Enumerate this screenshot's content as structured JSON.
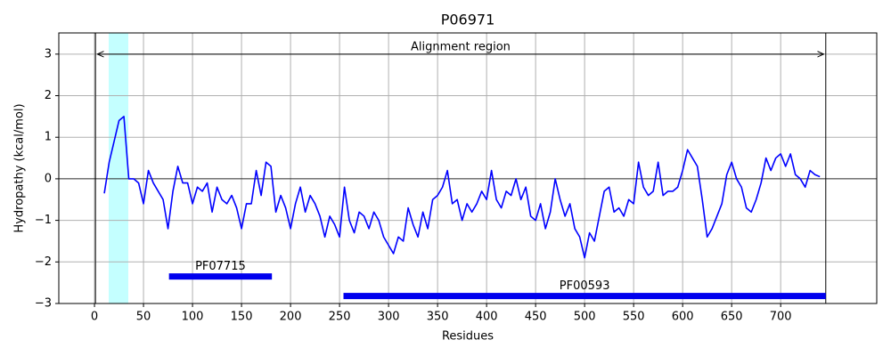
{
  "chart_data": {
    "type": "line",
    "title": "P06971",
    "x_label": "Residues",
    "y_label": "Hydropathy (kcal/mol)",
    "xlim": [
      -36.4,
      798
    ],
    "ylim": [
      -3,
      3.51
    ],
    "xticks": [
      0,
      50,
      100,
      150,
      200,
      250,
      300,
      350,
      400,
      450,
      500,
      550,
      600,
      650,
      700
    ],
    "yticks": [
      {
        "value": -3,
        "label": "−3"
      },
      {
        "value": -2,
        "label": "−2"
      },
      {
        "value": -1,
        "label": "−1"
      },
      0,
      1,
      2,
      3
    ],
    "grid": true,
    "hline": 0,
    "vlines": [
      1,
      746
    ],
    "highlight": {
      "start": 14.5,
      "end": 34.5,
      "color": "#c4ffff"
    },
    "alignment": {
      "label": "Alignment region",
      "start": 3,
      "end": 744,
      "y": 3
    },
    "domains": [
      {
        "name": "PF07715",
        "start": 76,
        "end": 181,
        "y": -2.35
      },
      {
        "name": "PF00593",
        "start": 254,
        "end": 746,
        "y": -2.82
      }
    ],
    "domain_color": "#0000ee",
    "series": [
      {
        "color": "#0000ff",
        "x": [
          10,
          15,
          20,
          25,
          30,
          35,
          40,
          45,
          50,
          55,
          60,
          65,
          70,
          75,
          80,
          85,
          90,
          95,
          100,
          105,
          110,
          115,
          120,
          125,
          130,
          135,
          140,
          145,
          150,
          155,
          160,
          165,
          170,
          175,
          180,
          185,
          190,
          195,
          200,
          205,
          210,
          215,
          220,
          225,
          230,
          235,
          240,
          245,
          250,
          255,
          260,
          265,
          270,
          275,
          280,
          285,
          290,
          295,
          300,
          305,
          310,
          315,
          320,
          325,
          330,
          335,
          340,
          345,
          350,
          355,
          360,
          365,
          370,
          375,
          380,
          385,
          390,
          395,
          400,
          405,
          410,
          415,
          420,
          425,
          430,
          435,
          440,
          445,
          450,
          455,
          460,
          465,
          470,
          475,
          480,
          485,
          490,
          495,
          500,
          505,
          510,
          515,
          520,
          525,
          530,
          535,
          540,
          545,
          550,
          555,
          560,
          565,
          570,
          575,
          580,
          585,
          590,
          595,
          600,
          605,
          610,
          615,
          620,
          625,
          630,
          635,
          640,
          645,
          650,
          655,
          660,
          665,
          670,
          675,
          680,
          685,
          690,
          695,
          700,
          705,
          710,
          715,
          720,
          725,
          730,
          735,
          740
        ],
        "values": [
          -0.35,
          0.4,
          0.9,
          1.4,
          1.5,
          0.0,
          0.0,
          -0.1,
          -0.6,
          0.2,
          -0.1,
          -0.3,
          -0.5,
          -1.2,
          -0.3,
          0.3,
          -0.1,
          -0.1,
          -0.6,
          -0.2,
          -0.3,
          -0.1,
          -0.8,
          -0.2,
          -0.5,
          -0.6,
          -0.4,
          -0.7,
          -1.2,
          -0.6,
          -0.6,
          0.2,
          -0.4,
          0.4,
          0.3,
          -0.8,
          -0.4,
          -0.7,
          -1.2,
          -0.6,
          -0.2,
          -0.8,
          -0.4,
          -0.6,
          -0.9,
          -1.4,
          -0.9,
          -1.1,
          -1.4,
          -0.2,
          -1.0,
          -1.3,
          -0.8,
          -0.9,
          -1.2,
          -0.8,
          -1.0,
          -1.4,
          -1.6,
          -1.8,
          -1.4,
          -1.5,
          -0.7,
          -1.1,
          -1.4,
          -0.8,
          -1.2,
          -0.5,
          -0.4,
          -0.2,
          0.2,
          -0.6,
          -0.5,
          -1.0,
          -0.6,
          -0.8,
          -0.6,
          -0.3,
          -0.5,
          0.2,
          -0.5,
          -0.7,
          -0.3,
          -0.4,
          0.0,
          -0.5,
          -0.2,
          -0.9,
          -1.0,
          -0.6,
          -1.2,
          -0.8,
          0.0,
          -0.5,
          -0.9,
          -0.6,
          -1.2,
          -1.4,
          -1.9,
          -1.3,
          -1.5,
          -0.9,
          -0.3,
          -0.2,
          -0.8,
          -0.7,
          -0.9,
          -0.5,
          -0.6,
          0.4,
          -0.2,
          -0.4,
          -0.3,
          0.4,
          -0.4,
          -0.3,
          -0.3,
          -0.2,
          0.2,
          0.7,
          0.5,
          0.3,
          -0.5,
          -1.4,
          -1.2,
          -0.9,
          -0.6,
          0.1,
          0.4,
          0.0,
          -0.2,
          -0.7,
          -0.8,
          -0.5,
          -0.1,
          0.5,
          0.2,
          0.5,
          0.6,
          0.3,
          0.6,
          0.1,
          0.0,
          -0.2,
          0.2,
          0.1,
          0.05
        ]
      }
    ]
  }
}
